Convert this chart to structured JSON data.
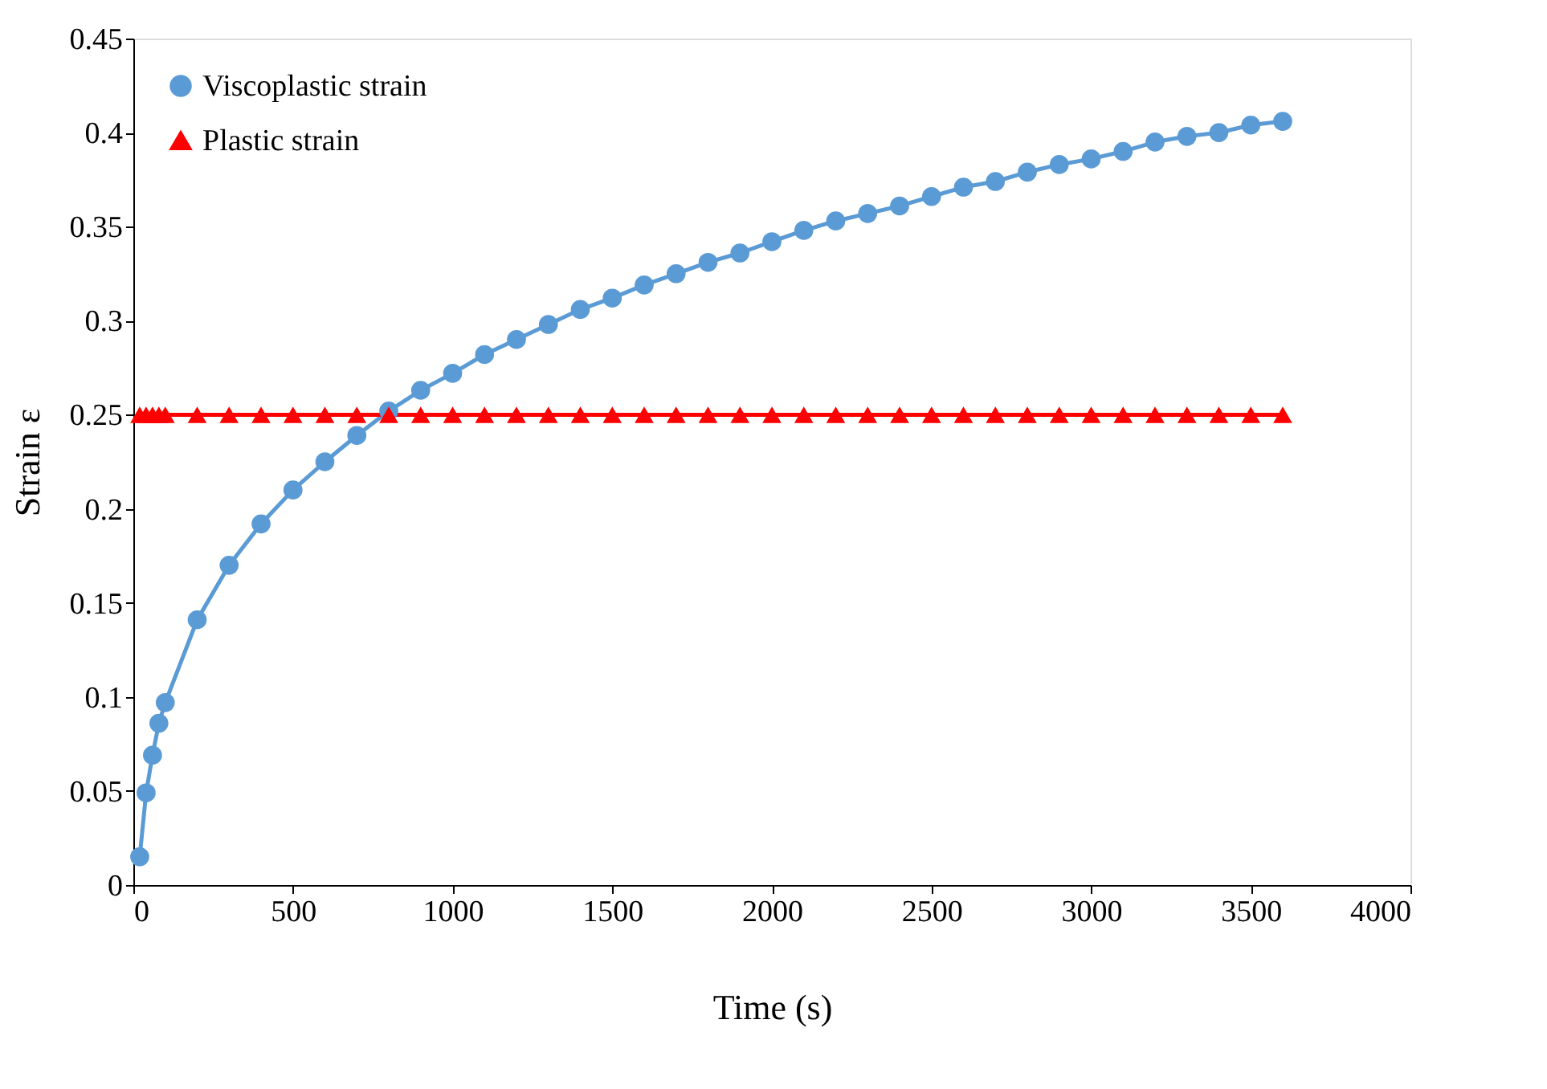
{
  "chart_data": {
    "type": "line",
    "xlabel": "Time (s)",
    "ylabel": "Strain ε",
    "xlim": [
      0,
      4000
    ],
    "xticks": [
      0,
      500,
      1000,
      1500,
      2000,
      2500,
      3000,
      3500,
      4000
    ],
    "ylim": [
      0,
      0.45
    ],
    "yticks": [
      0,
      0.05,
      0.1,
      0.15,
      0.2,
      0.25,
      0.3,
      0.35,
      0.4,
      0.45
    ],
    "grid": false,
    "legend": "top left",
    "x": [
      20,
      40,
      60,
      80,
      100,
      200,
      300,
      400,
      500,
      600,
      700,
      800,
      900,
      1000,
      1100,
      1200,
      1300,
      1400,
      1500,
      1600,
      1700,
      1800,
      1900,
      2000,
      2100,
      2200,
      2300,
      2400,
      2500,
      2600,
      2700,
      2800,
      2900,
      3000,
      3100,
      3200,
      3300,
      3400,
      3500,
      3600
    ],
    "series": [
      {
        "name": "Viscoplastic strain",
        "color": "#5b9bd5",
        "marker": "circle",
        "values": [
          0.015,
          0.049,
          0.069,
          0.086,
          0.097,
          0.141,
          0.17,
          0.192,
          0.21,
          0.225,
          0.239,
          0.252,
          0.263,
          0.272,
          0.282,
          0.29,
          0.298,
          0.306,
          0.312,
          0.319,
          0.325,
          0.331,
          0.336,
          0.342,
          0.348,
          0.353,
          0.357,
          0.361,
          0.366,
          0.371,
          0.374,
          0.379,
          0.383,
          0.386,
          0.39,
          0.395,
          0.398,
          0.4,
          0.404,
          0.406
        ]
      },
      {
        "name": "Plastic strain",
        "color": "#ff0000",
        "marker": "triangle",
        "values": [
          0.25,
          0.25,
          0.25,
          0.25,
          0.25,
          0.25,
          0.25,
          0.25,
          0.25,
          0.25,
          0.25,
          0.25,
          0.25,
          0.25,
          0.25,
          0.25,
          0.25,
          0.25,
          0.25,
          0.25,
          0.25,
          0.25,
          0.25,
          0.25,
          0.25,
          0.25,
          0.25,
          0.25,
          0.25,
          0.25,
          0.25,
          0.25,
          0.25,
          0.25,
          0.25,
          0.25,
          0.25,
          0.25,
          0.25,
          0.25
        ]
      }
    ]
  }
}
